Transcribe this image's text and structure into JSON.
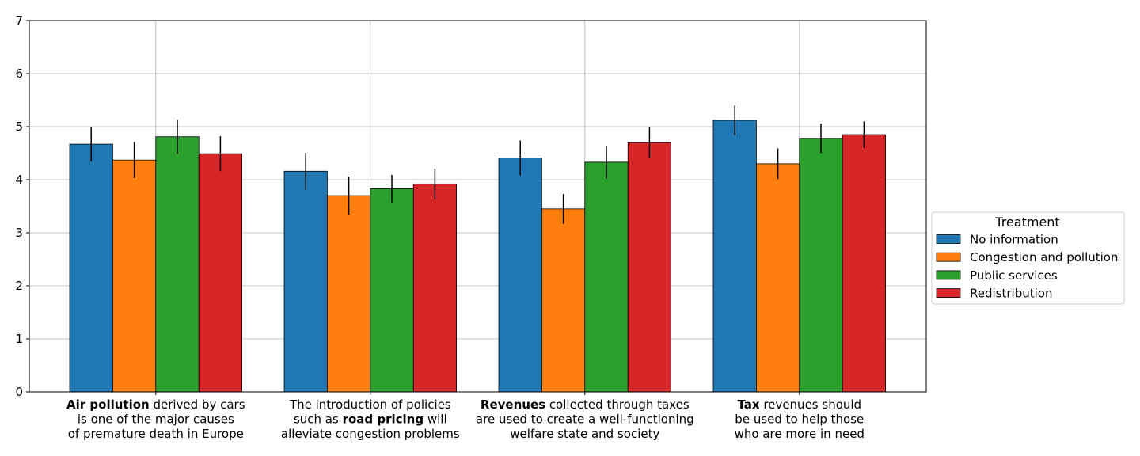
{
  "chart_data": {
    "type": "bar",
    "categories": [
      [
        [
          {
            "text": "Air pollution",
            "bold": true
          },
          {
            "text": " derived by cars",
            "bold": false
          }
        ],
        [
          {
            "text": "is one of the major causes",
            "bold": false
          }
        ],
        [
          {
            "text": "of premature death in Europe",
            "bold": false
          }
        ]
      ],
      [
        [
          {
            "text": "The introduction of policies",
            "bold": false
          }
        ],
        [
          {
            "text": "such as ",
            "bold": false
          },
          {
            "text": "road pricing",
            "bold": true
          },
          {
            "text": " will",
            "bold": false
          }
        ],
        [
          {
            "text": "alleviate congestion problems",
            "bold": false
          }
        ]
      ],
      [
        [
          {
            "text": "Revenues",
            "bold": true
          },
          {
            "text": " collected through taxes",
            "bold": false
          }
        ],
        [
          {
            "text": "are used to create a well-functioning",
            "bold": false
          }
        ],
        [
          {
            "text": "welfare state and society",
            "bold": false
          }
        ]
      ],
      [
        [
          {
            "text": "Tax",
            "bold": true
          },
          {
            "text": " revenues should",
            "bold": false
          }
        ],
        [
          {
            "text": "be used to help those",
            "bold": false
          }
        ],
        [
          {
            "text": "who are more in need",
            "bold": false
          }
        ]
      ]
    ],
    "series": [
      {
        "name": "No information",
        "color": "#1f77b4",
        "values": [
          4.67,
          4.16,
          4.41,
          5.12
        ],
        "errors": [
          0.33,
          0.35,
          0.33,
          0.28
        ]
      },
      {
        "name": "Congestion and pollution",
        "color": "#ff7f0e",
        "values": [
          4.37,
          3.7,
          3.45,
          4.3
        ],
        "errors": [
          0.34,
          0.36,
          0.28,
          0.29
        ]
      },
      {
        "name": "Public services",
        "color": "#2ca02c",
        "values": [
          4.81,
          3.83,
          4.33,
          4.78
        ],
        "errors": [
          0.32,
          0.26,
          0.31,
          0.28
        ]
      },
      {
        "name": "Redistribution",
        "color": "#d62728",
        "values": [
          4.49,
          3.92,
          4.7,
          4.85
        ],
        "errors": [
          0.33,
          0.29,
          0.3,
          0.25
        ]
      }
    ],
    "ylim": [
      0,
      7
    ],
    "yticks": [
      "0",
      "1",
      "2",
      "3",
      "4",
      "5",
      "6",
      "7"
    ],
    "grid": true,
    "legend": {
      "title": "Treatment",
      "placement": "center-right, outside plot"
    }
  }
}
